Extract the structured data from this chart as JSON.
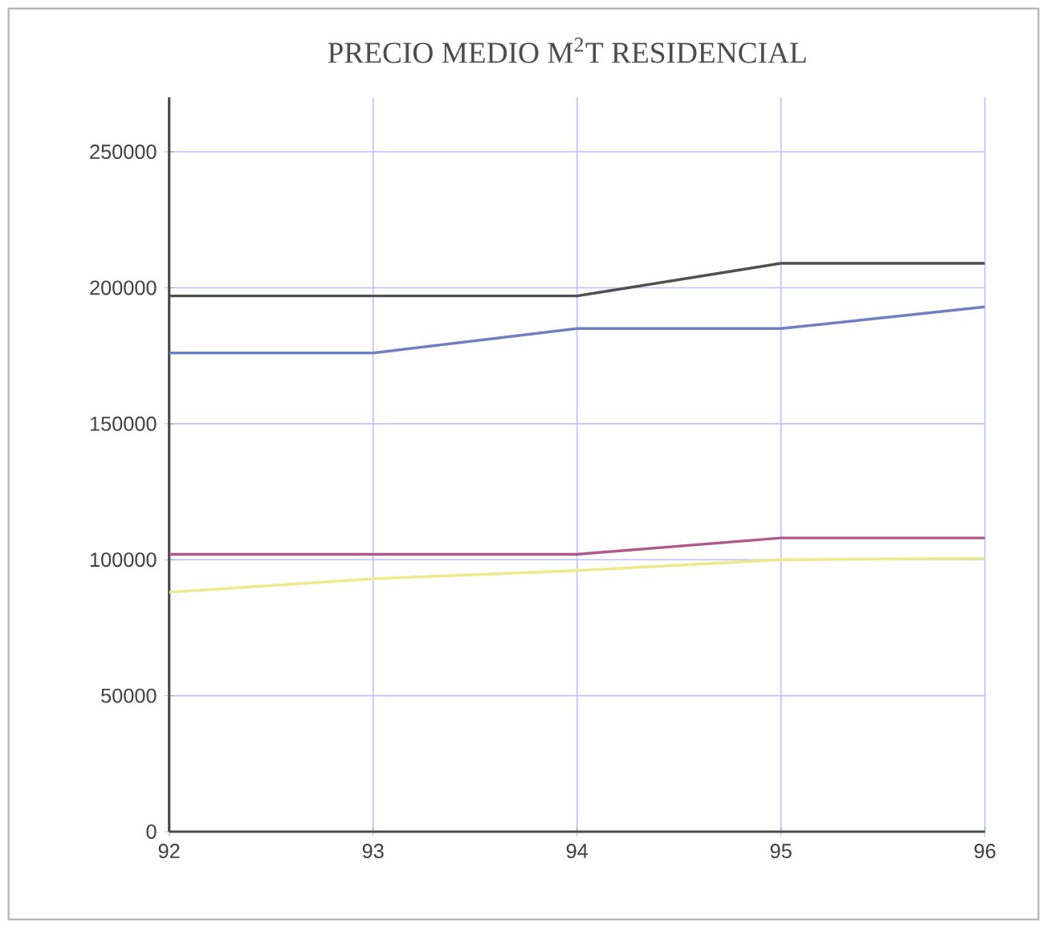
{
  "chart_data": {
    "type": "line",
    "title": "PRECIO MEDIO M$^{2}$T RESIDENCIAL",
    "x": [
      92,
      93,
      94,
      95,
      96
    ],
    "series": [
      {
        "color": "#505050",
        "values": [
          197000,
          197000,
          197000,
          209000,
          209000
        ]
      },
      {
        "color": "#6f7fc0",
        "values": [
          176000,
          176000,
          185000,
          185000,
          193000
        ]
      },
      {
        "color": "#b05a8a",
        "values": [
          102000,
          102000,
          102000,
          108000,
          108000
        ]
      },
      {
        "color": "#ecea8a",
        "values": [
          88000,
          93000,
          96000,
          100000,
          100500
        ]
      }
    ],
    "xlim": [
      92,
      96
    ],
    "ylim": [
      0,
      270000
    ],
    "xticks": [
      92,
      93,
      94,
      95,
      96
    ],
    "yticks": [
      0,
      50000,
      100000,
      150000,
      200000,
      250000
    ],
    "grid": true,
    "marker": "none",
    "line_style": "solid"
  }
}
